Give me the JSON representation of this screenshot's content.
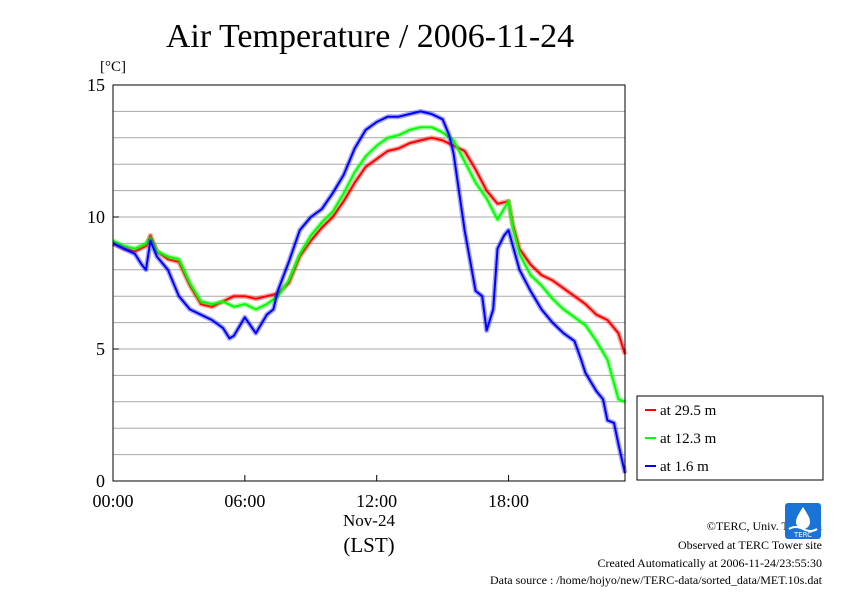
{
  "chart_data": {
    "type": "line",
    "title": "Air Temperature / 2006-11-24",
    "ylabel": "[°C]",
    "xlabel_date": "Nov-24",
    "xlabel_unit": "(LST)",
    "ylim": [
      0,
      15
    ],
    "xlim_hours": [
      0,
      23.3
    ],
    "y_ticks": [
      0,
      5,
      10,
      15
    ],
    "y_gridlines": [
      1,
      2,
      3,
      4,
      5,
      6,
      7,
      8,
      9,
      10,
      11,
      12,
      13,
      14
    ],
    "x_ticks": [
      {
        "hour": 0,
        "label": "00:00"
      },
      {
        "hour": 6,
        "label": "06:00"
      },
      {
        "hour": 12,
        "label": "12:00"
      },
      {
        "hour": 18,
        "label": "18:00"
      }
    ],
    "legend_position": "right",
    "series": [
      {
        "name": "at 29.5 m",
        "color": "#ff0000",
        "x": [
          0,
          0.5,
          1,
          1.5,
          1.7,
          2,
          2.5,
          3,
          3.5,
          4,
          4.5,
          5,
          5.5,
          6,
          6.5,
          7,
          7.5,
          8,
          8.5,
          9,
          9.5,
          10,
          10.5,
          11,
          11.5,
          12,
          12.5,
          13,
          13.5,
          14,
          14.5,
          15,
          15.5,
          16,
          16.5,
          17,
          17.5,
          18,
          18.2,
          18.5,
          19,
          19.5,
          20,
          20.5,
          21,
          21.5,
          22,
          22.5,
          23,
          23.3
        ],
        "values": [
          9.0,
          8.8,
          8.7,
          8.9,
          9.3,
          8.7,
          8.4,
          8.3,
          7.4,
          6.7,
          6.6,
          6.8,
          7.0,
          7.0,
          6.9,
          7.0,
          7.1,
          7.5,
          8.5,
          9.1,
          9.6,
          10.0,
          10.6,
          11.3,
          11.9,
          12.2,
          12.5,
          12.6,
          12.8,
          12.9,
          13.0,
          12.9,
          12.7,
          12.5,
          11.8,
          11.0,
          10.5,
          10.6,
          9.7,
          8.8,
          8.2,
          7.8,
          7.6,
          7.3,
          7.0,
          6.7,
          6.3,
          6.1,
          5.6,
          4.8
        ]
      },
      {
        "name": "at 12.3 m",
        "color": "#00ff00",
        "x": [
          0,
          0.5,
          1,
          1.5,
          1.7,
          2,
          2.5,
          3,
          3.5,
          4,
          4.5,
          5,
          5.5,
          6,
          6.5,
          7,
          7.5,
          8,
          8.5,
          9,
          9.5,
          10,
          10.5,
          11,
          11.5,
          12,
          12.5,
          13,
          13.5,
          14,
          14.5,
          15,
          15.5,
          16,
          16.5,
          17,
          17.5,
          18,
          18.2,
          18.5,
          19,
          19.5,
          20,
          20.5,
          21,
          21.5,
          22,
          22.5,
          23,
          23.3
        ],
        "values": [
          9.1,
          8.9,
          8.8,
          9.0,
          9.2,
          8.7,
          8.5,
          8.4,
          7.5,
          6.8,
          6.7,
          6.8,
          6.6,
          6.7,
          6.5,
          6.7,
          7.0,
          7.6,
          8.6,
          9.3,
          9.8,
          10.2,
          10.9,
          11.7,
          12.3,
          12.7,
          13.0,
          13.1,
          13.3,
          13.4,
          13.4,
          13.2,
          12.9,
          12.1,
          11.3,
          10.7,
          9.9,
          10.6,
          9.6,
          8.6,
          7.8,
          7.4,
          6.9,
          6.5,
          6.2,
          5.9,
          5.3,
          4.6,
          3.1,
          3.0
        ]
      },
      {
        "name": "at 1.6 m",
        "color": "#0000ff",
        "x": [
          0,
          0.5,
          1,
          1.3,
          1.5,
          1.7,
          2,
          2.5,
          3,
          3.5,
          4,
          4.5,
          5,
          5.3,
          5.5,
          6,
          6.5,
          7,
          7.3,
          7.5,
          8,
          8.5,
          9,
          9.5,
          10,
          10.5,
          11,
          11.5,
          12,
          12.5,
          13,
          13.5,
          14,
          14.5,
          15,
          15.3,
          15.5,
          16,
          16.5,
          16.8,
          17,
          17.3,
          17.5,
          17.8,
          18,
          18.5,
          19,
          19.5,
          20,
          20.5,
          21,
          21.3,
          21.5,
          22,
          22.3,
          22.5,
          22.8,
          23,
          23.3
        ],
        "values": [
          9.0,
          8.8,
          8.6,
          8.2,
          8.0,
          9.1,
          8.5,
          8.0,
          7.0,
          6.5,
          6.3,
          6.1,
          5.8,
          5.4,
          5.5,
          6.2,
          5.6,
          6.3,
          6.5,
          7.2,
          8.3,
          9.5,
          10.0,
          10.3,
          10.9,
          11.6,
          12.6,
          13.3,
          13.6,
          13.8,
          13.8,
          13.9,
          14.0,
          13.9,
          13.7,
          13.1,
          12.4,
          9.5,
          7.2,
          7.0,
          5.7,
          6.5,
          8.8,
          9.3,
          9.5,
          8.0,
          7.2,
          6.5,
          6.0,
          5.6,
          5.3,
          4.6,
          4.1,
          3.4,
          3.1,
          2.3,
          2.2,
          1.4,
          0.3
        ]
      }
    ]
  },
  "credits": {
    "copyright": "©TERC, Univ. Tsukuba",
    "observed": "Observed at TERC Tower site",
    "created": "Created Automatically at 2006-11-24/23:55:30",
    "source": "Data source : /home/hojyo/new/TERC-data/sorted_data/MET.10s.dat",
    "logo_text": "TERC"
  }
}
